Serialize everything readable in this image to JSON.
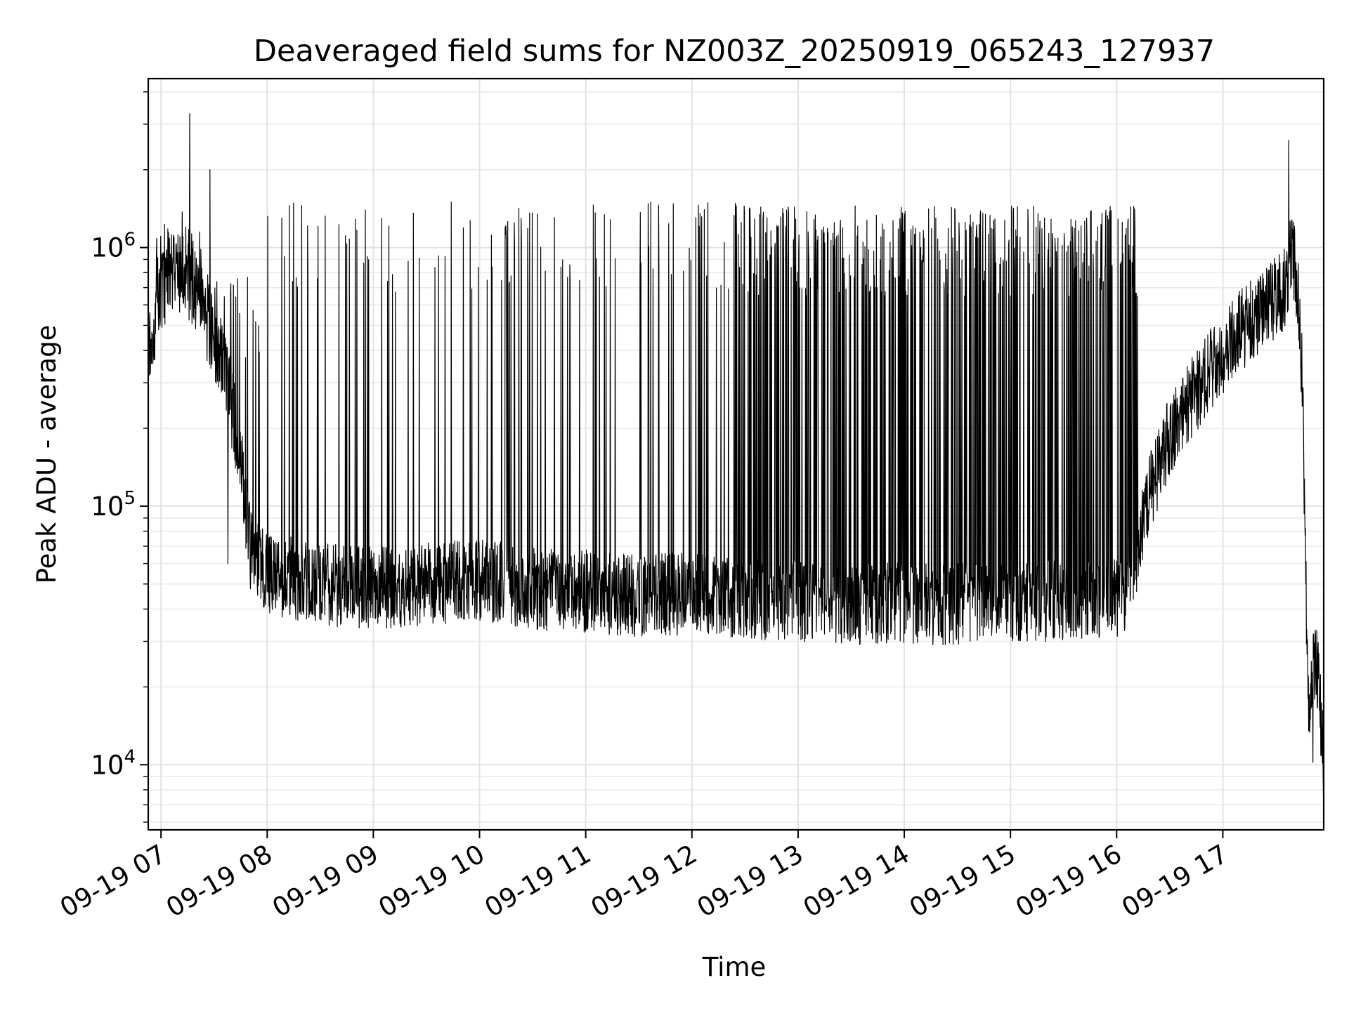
{
  "chart_data": {
    "type": "line",
    "title": "Deaveraged field sums for NZ003Z_20250919_065243_127937",
    "xlabel": "Time",
    "ylabel": "Peak ADU - average",
    "yscale": "log",
    "ylim": [
      5600,
      4500000
    ],
    "xlim_hours": [
      6.88,
      17.95
    ],
    "grid": true,
    "line_color": "#000000",
    "x_ticks": [
      {
        "label": "09-19 07",
        "hour": 7
      },
      {
        "label": "09-19 08",
        "hour": 8
      },
      {
        "label": "09-19 09",
        "hour": 9
      },
      {
        "label": "09-19 10",
        "hour": 10
      },
      {
        "label": "09-19 11",
        "hour": 11
      },
      {
        "label": "09-19 12",
        "hour": 12
      },
      {
        "label": "09-19 13",
        "hour": 13
      },
      {
        "label": "09-19 14",
        "hour": 14
      },
      {
        "label": "09-19 15",
        "hour": 15
      },
      {
        "label": "09-19 16",
        "hour": 16
      },
      {
        "label": "09-19 17",
        "hour": 17
      }
    ],
    "y_ticks": [
      {
        "base": "10",
        "exp": "4",
        "value": 10000
      },
      {
        "base": "10",
        "exp": "5",
        "value": 100000
      },
      {
        "base": "10",
        "exp": "6",
        "value": 1000000
      }
    ],
    "series": [
      {
        "name": "deaveraged field sums",
        "baseline": {
          "hours": [
            6.88,
            6.95,
            7.0,
            7.1,
            7.2,
            7.3,
            7.45,
            7.6,
            7.75,
            7.85,
            8.0,
            8.5,
            9.0,
            9.5,
            10.0,
            10.5,
            11.0,
            11.5,
            12.0,
            12.5,
            13.0,
            13.5,
            14.0,
            14.5,
            15.0,
            15.5,
            16.0,
            16.1,
            16.2,
            16.3,
            16.5,
            16.8,
            17.1,
            17.4,
            17.6,
            17.65,
            17.72,
            17.75,
            17.8,
            17.82,
            17.86,
            17.9,
            17.95
          ],
          "values": [
            420000,
            520000,
            700000,
            780000,
            800000,
            700000,
            500000,
            350000,
            150000,
            65000,
            55000,
            50000,
            48000,
            50000,
            52000,
            48000,
            47000,
            45000,
            46000,
            44000,
            43000,
            42000,
            42000,
            42000,
            43000,
            43000,
            45000,
            48000,
            65000,
            110000,
            190000,
            300000,
            450000,
            580000,
            700000,
            1050000,
            600000,
            300000,
            20000,
            15000,
            25000,
            22000,
            10000
          ]
        },
        "spike_bands": [
          {
            "start_hour": 6.95,
            "end_hour": 7.45,
            "rate_per_hour": 60,
            "peak": 1400000
          },
          {
            "start_hour": 7.45,
            "end_hour": 8.0,
            "rate_per_hour": 40,
            "peak": 800000
          },
          {
            "start_hour": 8.0,
            "end_hour": 10.25,
            "rate_per_hour": 22,
            "peak": 1500000
          },
          {
            "start_hour": 10.25,
            "end_hour": 10.55,
            "rate_per_hour": 60,
            "peak": 1500000
          },
          {
            "start_hour": 10.55,
            "end_hour": 11.5,
            "rate_per_hour": 18,
            "peak": 1500000
          },
          {
            "start_hour": 11.5,
            "end_hour": 12.45,
            "rate_per_hour": 40,
            "peak": 1500000
          },
          {
            "start_hour": 12.45,
            "end_hour": 16.2,
            "rate_per_hour": 110,
            "peak": 1450000
          }
        ],
        "notable_points": [
          {
            "hour": 7.27,
            "value": 3300000
          },
          {
            "hour": 7.46,
            "value": 2000000
          },
          {
            "hour": 7.63,
            "value": 60000
          },
          {
            "hour": 17.62,
            "value": 2600000
          },
          {
            "hour": 17.85,
            "value": 10200
          }
        ]
      }
    ]
  }
}
